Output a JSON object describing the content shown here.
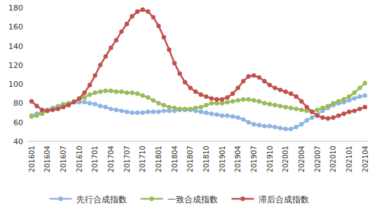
{
  "chart_data": {
    "type": "line",
    "categories": [
      "201601",
      null,
      null,
      "201604",
      null,
      null,
      "201607",
      null,
      null,
      "201610",
      null,
      null,
      "201701",
      null,
      null,
      "201704",
      null,
      null,
      "201707",
      null,
      null,
      "201710",
      null,
      null,
      "201801",
      null,
      null,
      "201804",
      null,
      null,
      "201807",
      null,
      null,
      "201810",
      null,
      null,
      "201901",
      null,
      null,
      "201904",
      null,
      null,
      "201907",
      null,
      null,
      "201910",
      null,
      null,
      "202001",
      null,
      null,
      "202004",
      null,
      null,
      "202007",
      null,
      null,
      "202010",
      null,
      null,
      "202101",
      null,
      null,
      "202104"
    ],
    "series": [
      {
        "name": "先行合成指数",
        "color": "#8eb4e3",
        "marker": "circle",
        "values": [
          67,
          69,
          71,
          73,
          75,
          77,
          79,
          80,
          81,
          81,
          81,
          80,
          79,
          77,
          76,
          74,
          73,
          72,
          71,
          70,
          70,
          70,
          71,
          71,
          71,
          72,
          72,
          72,
          73,
          73,
          73,
          72,
          71,
          70,
          69,
          68,
          67,
          67,
          66,
          65,
          63,
          60,
          58,
          57,
          56,
          56,
          55,
          54,
          53,
          53,
          55,
          58,
          62,
          65,
          68,
          72,
          75,
          78,
          80,
          81,
          83,
          85,
          87,
          88
        ]
      },
      {
        "name": "一致合成指数",
        "color": "#9bbb59",
        "marker": "circle",
        "values": [
          66,
          67,
          69,
          72,
          74,
          76,
          78,
          80,
          82,
          84,
          86,
          89,
          91,
          92,
          93,
          93,
          92,
          92,
          91,
          91,
          90,
          88,
          86,
          83,
          80,
          78,
          76,
          75,
          74,
          74,
          74,
          75,
          76,
          78,
          80,
          80,
          80,
          81,
          82,
          83,
          84,
          84,
          83,
          82,
          80,
          79,
          78,
          77,
          76,
          75,
          74,
          73,
          72,
          71,
          73,
          75,
          77,
          80,
          82,
          84,
          87,
          91,
          96,
          101
        ]
      },
      {
        "name": "滞后合成指数",
        "color": "#c0504d",
        "marker": "circle",
        "values": [
          82,
          77,
          73,
          72,
          73,
          74,
          76,
          78,
          81,
          85,
          91,
          99,
          109,
          120,
          129,
          138,
          146,
          155,
          163,
          171,
          176,
          178,
          176,
          170,
          161,
          149,
          136,
          122,
          111,
          102,
          96,
          92,
          89,
          87,
          85,
          84,
          84,
          86,
          90,
          96,
          103,
          108,
          109,
          107,
          103,
          99,
          96,
          94,
          92,
          90,
          87,
          82,
          76,
          71,
          67,
          65,
          64,
          65,
          67,
          69,
          71,
          72,
          74,
          76
        ]
      }
    ],
    "ylim": [
      40,
      180
    ],
    "yticks": [
      40,
      60,
      80,
      100,
      120,
      140,
      160,
      180
    ],
    "grid": false,
    "legend": "bottom"
  }
}
